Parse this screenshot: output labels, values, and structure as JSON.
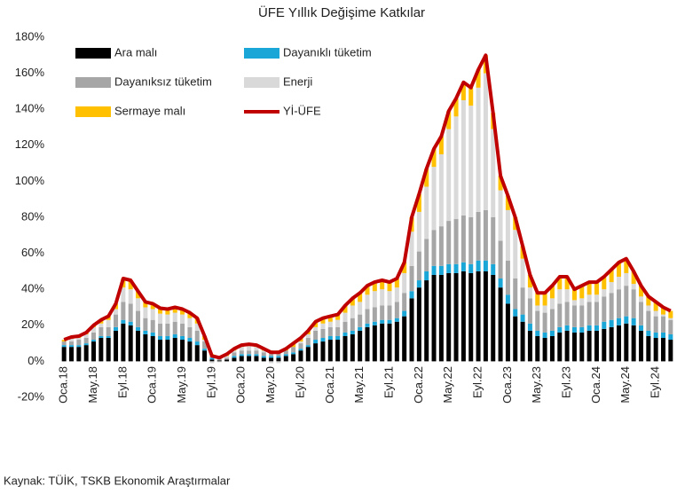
{
  "chart_data": {
    "type": "bar",
    "stacked": true,
    "title": "ÜFE Yıllık Değişime Katkılar",
    "source": "Kaynak: TÜİK, TSKB Ekonomik Araştırmalar",
    "categories": [
      "Oca.18",
      null,
      null,
      null,
      "May.18",
      null,
      null,
      null,
      "Eyl.18",
      null,
      null,
      null,
      "Oca.19",
      null,
      null,
      null,
      "May.19",
      null,
      null,
      null,
      "Eyl.19",
      null,
      null,
      null,
      "Oca.20",
      null,
      null,
      null,
      "May.20",
      null,
      null,
      null,
      "Eyl.20",
      null,
      null,
      null,
      "Oca.21",
      null,
      null,
      null,
      "May.21",
      null,
      null,
      null,
      "Eyl.21",
      null,
      null,
      null,
      "Oca.22",
      null,
      null,
      null,
      "May.22",
      null,
      null,
      null,
      "Eyl.22",
      null,
      null,
      null,
      "Oca.23",
      null,
      null,
      null,
      "May.23",
      null,
      null,
      null,
      "Eyl.23",
      null,
      null,
      null,
      "Oca.24",
      null,
      null,
      null,
      "May.24",
      null,
      null,
      null,
      "Eyl.24",
      null,
      null
    ],
    "ylim": [
      -20,
      180
    ],
    "yticks": [
      {
        "value": -20,
        "label": "-20%"
      },
      {
        "value": 0,
        "label": "0%"
      },
      {
        "value": 20,
        "label": "20%"
      },
      {
        "value": 40,
        "label": "40%"
      },
      {
        "value": 60,
        "label": "60%"
      },
      {
        "value": 80,
        "label": "80%"
      },
      {
        "value": 100,
        "label": "100%"
      },
      {
        "value": 120,
        "label": "120%"
      },
      {
        "value": 140,
        "label": "140%"
      },
      {
        "value": 160,
        "label": "160%"
      },
      {
        "value": 180,
        "label": "180%"
      }
    ],
    "series": [
      {
        "name": "Ara malı",
        "type": "bar",
        "color": "#000000",
        "values": [
          8,
          8,
          8,
          9,
          11,
          13,
          13,
          17,
          21,
          20,
          17,
          15,
          14,
          12,
          12,
          13,
          12,
          11,
          9,
          6,
          1,
          0.5,
          1,
          2,
          3,
          3,
          3,
          2,
          2,
          2,
          3,
          4,
          6,
          8,
          10,
          11,
          12,
          12,
          14,
          15,
          17,
          19,
          20,
          21,
          21,
          22,
          25,
          35,
          41,
          45,
          48,
          48,
          49,
          49,
          50,
          49,
          50,
          50,
          48,
          41,
          32,
          25,
          22,
          17,
          14,
          13,
          14,
          16,
          17,
          16,
          16,
          17,
          17,
          18,
          19,
          20,
          21,
          20,
          17,
          14,
          13,
          13,
          12
        ]
      },
      {
        "name": "Dayanıklı tüketim",
        "type": "bar",
        "color": "#1aa7d8",
        "values": [
          1,
          1,
          1,
          1,
          1,
          1,
          1,
          2,
          2,
          2,
          2,
          2,
          2,
          2,
          2,
          2,
          2,
          2,
          2,
          1,
          1,
          0,
          0,
          1,
          1,
          1,
          1,
          1,
          1,
          1,
          1,
          1,
          1,
          1,
          2,
          2,
          2,
          2,
          2,
          2,
          2,
          2,
          2,
          2,
          2,
          2,
          3,
          4,
          4,
          5,
          5,
          5,
          5,
          5,
          5,
          5,
          6,
          6,
          6,
          5,
          5,
          4,
          4,
          4,
          3,
          3,
          3,
          3,
          3,
          3,
          3,
          3,
          3,
          4,
          4,
          4,
          4,
          4,
          3,
          3,
          3,
          3,
          3
        ]
      },
      {
        "name": "Dayanıksız tüketim",
        "type": "bar",
        "color": "#a6a6a6",
        "values": [
          2,
          2,
          3,
          3,
          4,
          5,
          5,
          7,
          10,
          10,
          9,
          7,
          7,
          7,
          7,
          7,
          7,
          6,
          6,
          4,
          1,
          1,
          1,
          2,
          2,
          2,
          2,
          2,
          2,
          2,
          2,
          3,
          3,
          4,
          5,
          5,
          5,
          5,
          6,
          7,
          7,
          8,
          8,
          8,
          8,
          9,
          10,
          14,
          16,
          18,
          20,
          22,
          24,
          25,
          26,
          26,
          27,
          28,
          26,
          21,
          19,
          17,
          15,
          14,
          11,
          11,
          12,
          13,
          13,
          12,
          12,
          13,
          13,
          14,
          15,
          16,
          17,
          16,
          13,
          11,
          9,
          9,
          8
        ]
      },
      {
        "name": "Enerji",
        "type": "bar",
        "color": "#d9d9d9",
        "values": [
          0,
          1.5,
          1,
          2,
          3,
          2,
          4,
          3,
          8,
          8,
          7,
          6,
          6,
          5.5,
          5,
          5,
          5,
          5,
          4,
          1,
          -1,
          -0.5,
          1,
          1,
          2,
          2.5,
          2,
          1,
          -1,
          -1,
          0,
          0,
          1,
          2,
          2,
          3,
          3,
          4,
          5,
          7,
          7,
          8,
          9,
          9,
          8,
          8,
          11,
          19,
          22,
          29,
          35,
          40,
          51,
          57,
          64,
          62,
          69,
          76,
          49,
          28,
          28,
          27,
          16,
          6,
          3,
          4,
          6,
          8,
          7,
          3,
          4,
          4,
          4,
          4,
          6,
          7,
          7,
          3,
          3,
          3,
          3,
          1,
          1
        ]
      },
      {
        "name": "Sermaye malı",
        "type": "bar",
        "color": "#ffc000",
        "values": [
          1,
          1,
          1,
          1,
          1,
          2,
          2,
          3,
          5,
          5,
          4,
          3,
          3,
          3,
          3,
          3,
          3,
          3,
          3,
          2,
          1,
          1,
          1,
          1,
          1,
          1,
          1,
          1,
          1,
          1,
          1,
          2,
          2,
          2,
          3,
          3,
          3,
          3,
          4,
          4,
          5,
          5,
          5,
          5,
          5,
          5,
          6,
          8,
          10,
          10,
          10,
          10,
          10,
          10,
          10,
          10,
          10,
          10,
          9,
          8,
          8,
          7,
          7,
          7,
          7,
          7,
          7,
          7,
          7,
          6,
          7,
          7,
          7,
          7,
          7,
          8,
          8,
          7,
          6,
          5,
          5,
          4,
          4
        ]
      },
      {
        "name": "Yİ-ÜFE",
        "type": "line",
        "color": "#c00000",
        "values": [
          12,
          13.5,
          14,
          16,
          20,
          23,
          25,
          32,
          46,
          45,
          39,
          33,
          32,
          29.5,
          29,
          30,
          29,
          27,
          24,
          14,
          3,
          2,
          4,
          7,
          9,
          9.5,
          9,
          7,
          5,
          5,
          7,
          10,
          13,
          17,
          22,
          24,
          25,
          26,
          31,
          35,
          38,
          42,
          44,
          45,
          44,
          46,
          55,
          80,
          93,
          107,
          118,
          125,
          139,
          146,
          155,
          152,
          162,
          170,
          138,
          103,
          92,
          80,
          64,
          48,
          38,
          38,
          42,
          47,
          47,
          40,
          42,
          44,
          44,
          47,
          51,
          55,
          57,
          50,
          42,
          36,
          33,
          30,
          28
        ]
      }
    ]
  }
}
